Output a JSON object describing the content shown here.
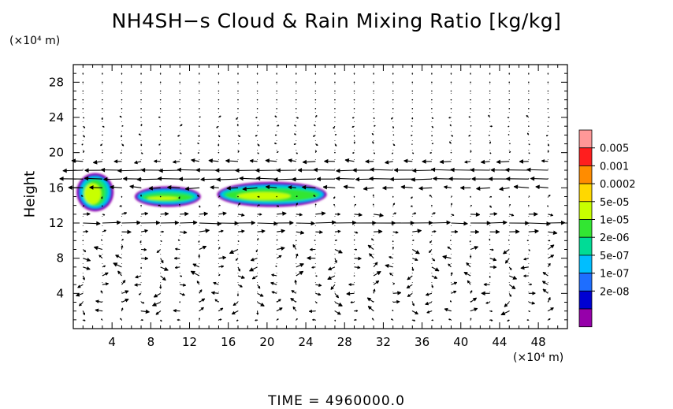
{
  "chart_data": {
    "type": "heatmap",
    "title": "NH4SH−s Cloud & Rain Mixing Ratio [kg/kg]",
    "ylabel": "Height",
    "y_unit_label": "(×10⁴ m)",
    "x_unit_label": "(×10⁴ m)",
    "xlim": [
      0,
      51
    ],
    "ylim": [
      0,
      30
    ],
    "x_ticks": [
      4,
      8,
      12,
      16,
      20,
      24,
      28,
      32,
      36,
      40,
      44,
      48
    ],
    "y_ticks": [
      4,
      8,
      12,
      16,
      20,
      24,
      28
    ],
    "grid": true,
    "footer": "TIME  =  4960000.0",
    "colorbar": {
      "placement": "right",
      "labels": [
        "0.005",
        "0.001",
        "0.0002",
        "5e-05",
        "1e-05",
        "2e-06",
        "5e-07",
        "1e-07",
        "2e-08"
      ],
      "colors": [
        "#ff9898",
        "#ff1e1e",
        "#ff8c00",
        "#ffd800",
        "#c8ff00",
        "#32e632",
        "#00dc96",
        "#00beff",
        "#1e6eff",
        "#0000d2",
        "#9600aa"
      ]
    },
    "cloud_regions": [
      {
        "x_range": [
          0.5,
          4
        ],
        "y_range": [
          13.5,
          17.5
        ],
        "peak": "1e-05"
      },
      {
        "x_range": [
          6.5,
          13
        ],
        "y_range": [
          14,
          16
        ],
        "peak": "1e-05"
      },
      {
        "x_range": [
          15,
          26
        ],
        "y_range": [
          14,
          16.5
        ],
        "peak": "1e-05"
      }
    ],
    "vector_field": {
      "description": "wind vectors",
      "jets": [
        {
          "y": 17,
          "direction": "west"
        },
        {
          "y": 12,
          "direction": "east"
        }
      ]
    }
  }
}
